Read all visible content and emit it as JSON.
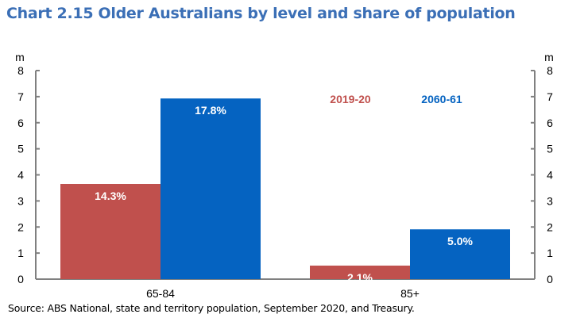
{
  "chart_data": {
    "type": "bar",
    "title": "Chart 2.15  Older Australians by level and share of population",
    "source": "Source: ABS National, state and territory population, September 2020, and Treasury.",
    "ylabel_left": "m",
    "ylabel_right": "m",
    "ylim": [
      0,
      8
    ],
    "yticks": [
      "0",
      "1",
      "2",
      "3",
      "4",
      "5",
      "6",
      "7",
      "8"
    ],
    "categories": [
      "65-84",
      "85+"
    ],
    "series": [
      {
        "name": "2019-20",
        "color": "#c0504d",
        "values": [
          3.65,
          0.52
        ],
        "labels": [
          "14.3%",
          "2.1%"
        ]
      },
      {
        "name": "2060-61",
        "color": "#0563c1",
        "values": [
          6.93,
          1.91
        ],
        "labels": [
          "17.8%",
          "5.0%"
        ]
      }
    ],
    "legend": "top-right, inside plot",
    "grid": false
  }
}
